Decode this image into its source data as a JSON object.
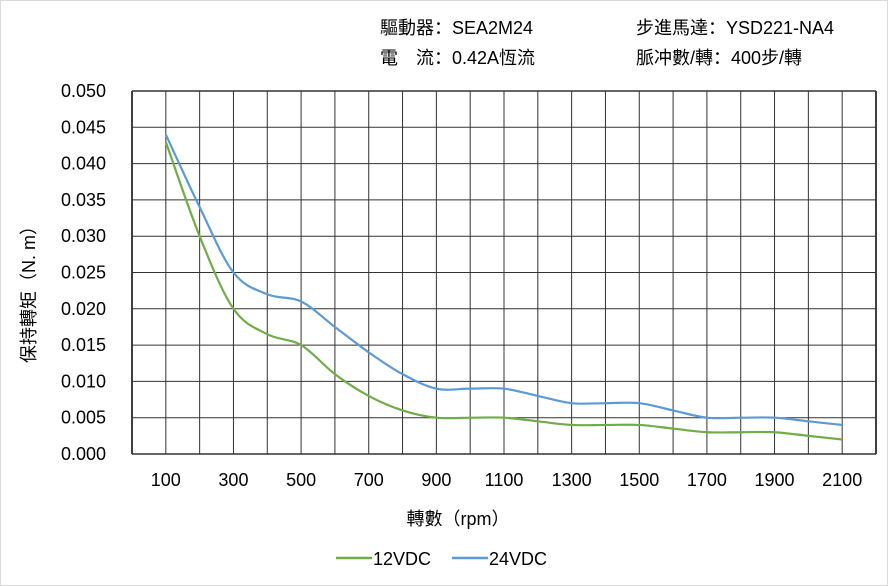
{
  "header": {
    "driver_label": "驅動器：",
    "driver_value": "SEA2M24",
    "current_label": "電　流：",
    "current_value": "0.42A恆流",
    "motor_label": "步進馬達：",
    "motor_value": "YSD221-NA4",
    "pulse_label": "脈冲數/轉：",
    "pulse_value": "400步/轉"
  },
  "chart_data": {
    "type": "line",
    "title": "",
    "xlabel": "轉數（rpm）",
    "ylabel": "保持轉矩（N. m）",
    "xlim": [
      0,
      2200
    ],
    "ylim": [
      0,
      0.05
    ],
    "grid": true,
    "legend_position": "bottom",
    "x_ticks": [
      "100",
      "300",
      "500",
      "700",
      "900",
      "1100",
      "1300",
      "1500",
      "1700",
      "1900",
      "2100"
    ],
    "y_ticks": [
      "0.000",
      "0.005",
      "0.010",
      "0.015",
      "0.020",
      "0.025",
      "0.030",
      "0.035",
      "0.040",
      "0.045",
      "0.050"
    ],
    "x": [
      100,
      200,
      300,
      400,
      500,
      600,
      700,
      800,
      900,
      1000,
      1100,
      1200,
      1300,
      1400,
      1500,
      1600,
      1700,
      1800,
      1900,
      2000,
      2100
    ],
    "series": [
      {
        "name": "12VDC",
        "color": "#70ad47",
        "values": [
          0.043,
          0.03,
          0.02,
          0.0165,
          0.015,
          0.011,
          0.008,
          0.006,
          0.005,
          0.005,
          0.005,
          0.0045,
          0.004,
          0.004,
          0.004,
          0.0035,
          0.003,
          0.003,
          0.003,
          0.0025,
          0.002
        ]
      },
      {
        "name": "24VDC",
        "color": "#5b9bd5",
        "values": [
          0.044,
          0.034,
          0.025,
          0.022,
          0.021,
          0.0175,
          0.014,
          0.011,
          0.009,
          0.009,
          0.009,
          0.008,
          0.007,
          0.007,
          0.007,
          0.006,
          0.005,
          0.005,
          0.005,
          0.0045,
          0.004
        ]
      }
    ]
  }
}
